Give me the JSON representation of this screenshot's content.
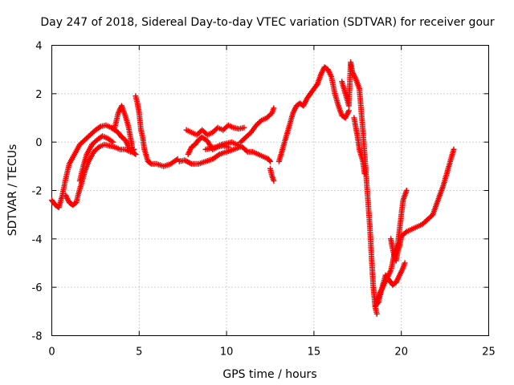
{
  "chart_data": {
    "type": "scatter",
    "title": "Day 247 of 2018, Sidereal Day-to-day VTEC variation (SDTVAR) for receiver gour",
    "xlabel": "GPS time / hours",
    "ylabel": "SDTVAR / TECUs",
    "xlim": [
      0,
      25
    ],
    "ylim": [
      -8,
      4
    ],
    "xticks": [
      "0",
      "5",
      "10",
      "15",
      "20",
      "25"
    ],
    "yticks": [
      "-8",
      "-6",
      "-4",
      "-2",
      "0",
      "2",
      "4"
    ],
    "grid": true,
    "marker": "plus",
    "color": "#ff0000",
    "series": [
      {
        "x": [
          0.0,
          0.2,
          0.4,
          0.6,
          0.8,
          1.0,
          1.3,
          1.6,
          1.9,
          2.2,
          2.5,
          2.8,
          3.1,
          3.4,
          3.6,
          3.8,
          4.0,
          4.2,
          4.4,
          4.6,
          4.8
        ],
        "y": [
          -2.4,
          -2.6,
          -2.7,
          -2.2,
          -1.5,
          -0.9,
          -0.5,
          -0.1,
          0.1,
          0.3,
          0.5,
          0.65,
          0.7,
          0.6,
          0.5,
          0.4,
          0.2,
          0.1,
          -0.2,
          -0.4,
          -0.5
        ]
      },
      {
        "x": [
          0.8,
          1.0,
          1.2,
          1.4,
          1.5,
          1.7,
          1.9,
          2.1,
          2.4,
          2.7,
          3.0,
          3.3,
          3.6,
          3.9,
          4.2,
          4.5,
          4.7
        ],
        "y": [
          -2.2,
          -2.5,
          -2.6,
          -2.5,
          -2.2,
          -1.7,
          -1.2,
          -0.8,
          -0.4,
          -0.2,
          -0.1,
          -0.15,
          -0.2,
          -0.3,
          -0.3,
          -0.4,
          -0.3
        ]
      },
      {
        "x": [
          1.6,
          1.8,
          2.0,
          2.3,
          2.6,
          2.9,
          3.2,
          3.5
        ],
        "y": [
          -1.6,
          -1.0,
          -0.5,
          -0.1,
          0.1,
          0.25,
          0.15,
          0.0
        ]
      },
      {
        "x": [
          3.6,
          3.8,
          4.0,
          4.2,
          4.4,
          4.6
        ],
        "y": [
          0.6,
          1.2,
          1.5,
          1.1,
          0.6,
          -0.2
        ]
      },
      {
        "x": [
          4.8,
          4.9,
          5.0,
          5.1,
          5.2,
          5.3,
          5.5,
          5.7,
          6.0,
          6.4,
          6.8,
          7.2
        ],
        "y": [
          1.9,
          1.6,
          1.2,
          0.5,
          0.2,
          -0.3,
          -0.8,
          -0.9,
          -0.9,
          -1.0,
          -0.9,
          -0.7
        ]
      },
      {
        "x": [
          7.3,
          7.6,
          8.0,
          8.4,
          8.8,
          9.2,
          9.6,
          10.0,
          10.4,
          10.8
        ],
        "y": [
          -0.8,
          -0.75,
          -0.9,
          -0.9,
          -0.8,
          -0.7,
          -0.5,
          -0.4,
          -0.3,
          -0.2
        ]
      },
      {
        "x": [
          7.7,
          8.0,
          8.3,
          8.6,
          8.9,
          9.2,
          9.5,
          9.8,
          10.1,
          10.4,
          10.7,
          11.0
        ],
        "y": [
          0.5,
          0.4,
          0.3,
          0.5,
          0.3,
          0.4,
          0.6,
          0.5,
          0.7,
          0.6,
          0.55,
          0.6
        ]
      },
      {
        "x": [
          7.8,
          8.0,
          8.2,
          8.4,
          8.6,
          8.9,
          9.2,
          9.5,
          9.8,
          10.1
        ],
        "y": [
          -0.5,
          -0.2,
          -0.1,
          0.1,
          0.2,
          0.05,
          -0.3,
          -0.2,
          -0.15,
          -0.2
        ]
      },
      {
        "x": [
          8.8,
          9.1,
          9.4,
          9.7,
          10.0,
          10.3,
          10.6,
          10.9,
          11.2,
          11.5,
          11.8,
          12.1,
          12.4,
          12.5
        ],
        "y": [
          -0.3,
          -0.25,
          -0.2,
          -0.1,
          -0.05,
          0.0,
          -0.1,
          -0.2,
          -0.4,
          -0.4,
          -0.5,
          -0.6,
          -0.7,
          -0.8
        ]
      },
      {
        "x": [
          10.8,
          11.1,
          11.4,
          11.7,
          12.0,
          12.3,
          12.6,
          12.7
        ],
        "y": [
          0.0,
          0.2,
          0.4,
          0.7,
          0.9,
          1.0,
          1.2,
          1.4
        ]
      },
      {
        "x": [
          12.5,
          12.6,
          12.7
        ],
        "y": [
          -1.1,
          -1.4,
          -1.6
        ]
      },
      {
        "x": [
          13.0,
          13.2,
          13.4,
          13.6,
          13.8,
          14.0,
          14.2,
          14.4,
          14.6,
          14.8,
          15.0,
          15.2,
          15.4,
          15.6,
          15.8,
          16.0,
          16.2,
          16.4,
          16.6,
          16.8,
          17.0
        ],
        "y": [
          -0.8,
          -0.3,
          0.2,
          0.7,
          1.2,
          1.5,
          1.6,
          1.5,
          1.8,
          2.0,
          2.2,
          2.4,
          2.8,
          3.1,
          3.0,
          2.7,
          2.0,
          1.5,
          1.1,
          1.0,
          1.3
        ]
      },
      {
        "x": [
          16.6,
          16.8,
          17.0,
          17.1,
          17.2,
          17.4,
          17.6,
          17.8,
          18.0,
          18.1,
          18.2,
          18.3,
          18.4,
          18.5,
          18.6
        ],
        "y": [
          2.5,
          2.0,
          1.5,
          3.3,
          2.9,
          2.6,
          2.2,
          0.5,
          -1.5,
          -2.5,
          -3.5,
          -4.8,
          -6.0,
          -6.8,
          -7.1
        ]
      },
      {
        "x": [
          17.3,
          17.5,
          17.6,
          17.8,
          17.9
        ],
        "y": [
          1.0,
          0.2,
          -0.3,
          -0.8,
          -1.3
        ]
      },
      {
        "x": [
          18.5,
          18.7,
          18.9,
          19.1,
          19.3,
          19.5,
          19.7,
          19.9,
          20.1,
          20.2
        ],
        "y": [
          -6.8,
          -6.6,
          -6.0,
          -5.5,
          -5.7,
          -5.9,
          -5.8,
          -5.5,
          -5.2,
          -5.0
        ]
      },
      {
        "x": [
          18.6,
          18.8,
          19.0,
          19.2,
          19.4,
          19.5,
          19.6,
          19.8,
          20.0,
          20.1,
          20.3
        ],
        "y": [
          -6.6,
          -6.2,
          -5.9,
          -5.6,
          -5.3,
          -5.0,
          -4.6,
          -4.2,
          -3.0,
          -2.4,
          -2.0
        ]
      },
      {
        "x": [
          19.4,
          19.5,
          19.6,
          19.7,
          19.8,
          19.9,
          20.0
        ],
        "y": [
          -4.0,
          -4.4,
          -4.7,
          -4.9,
          -4.5,
          -4.3,
          -3.9
        ]
      },
      {
        "x": [
          20.0,
          20.3,
          20.6,
          20.9,
          21.2,
          21.5,
          21.8,
          22.0,
          22.2,
          22.4,
          22.6,
          22.8,
          23.0
        ],
        "y": [
          -3.9,
          -3.7,
          -3.6,
          -3.5,
          -3.4,
          -3.2,
          -3.0,
          -2.6,
          -2.2,
          -1.8,
          -1.3,
          -0.8,
          -0.3
        ]
      }
    ]
  }
}
